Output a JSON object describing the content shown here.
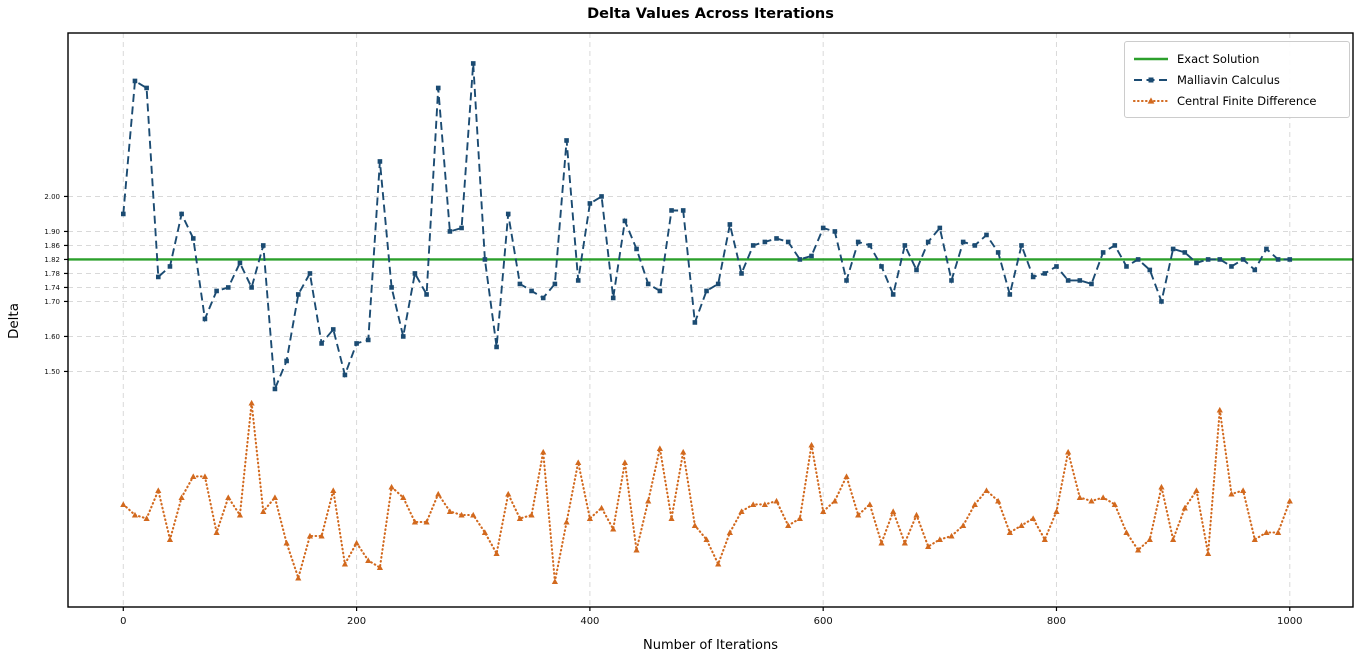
{
  "title": "Delta Values Across Iterations",
  "axes": {
    "x_label": "Number of Iterations",
    "y_label": "Delta"
  },
  "legend": {
    "position": "upper right",
    "entries": [
      "Exact Solution",
      "Malliavin Calculus",
      "Central Finite Difference"
    ]
  },
  "colors": {
    "exact": "#2ca02c",
    "malliavin": "#1b4b72",
    "cfd": "#d2691e",
    "grid": "#d9d9d9",
    "spine": "#000000",
    "background": "#ffffff"
  },
  "chart_data": {
    "type": "line",
    "title": "Delta Values Across Iterations",
    "xlabel": "Number of Iterations",
    "ylabel": "Delta",
    "grid": true,
    "legend_position": "upper right",
    "xlim": [
      -47.4,
      1054.2
    ],
    "ylim": [
      0.827,
      2.467
    ],
    "xtick_labels": [
      "0",
      "200",
      "400",
      "600",
      "800",
      "1000"
    ],
    "ytick_labels": [
      "1.50",
      "1.60",
      "1.70",
      "1.74",
      "1.78",
      "1.82",
      "1.86",
      "1.90",
      "2.00"
    ],
    "x": [
      0,
      10,
      20,
      30,
      40,
      50,
      60,
      70,
      80,
      90,
      100,
      110,
      120,
      130,
      140,
      150,
      160,
      170,
      180,
      190,
      200,
      210,
      220,
      230,
      240,
      250,
      260,
      270,
      280,
      290,
      300,
      310,
      320,
      330,
      340,
      350,
      360,
      370,
      380,
      390,
      400,
      410,
      420,
      430,
      440,
      450,
      460,
      470,
      480,
      490,
      500,
      510,
      520,
      530,
      540,
      550,
      560,
      570,
      580,
      590,
      600,
      610,
      620,
      630,
      640,
      650,
      660,
      670,
      680,
      690,
      700,
      710,
      720,
      730,
      740,
      750,
      760,
      770,
      780,
      790,
      800,
      810,
      820,
      830,
      840,
      850,
      860,
      870,
      880,
      890,
      900,
      910,
      920,
      930,
      940,
      950,
      960,
      970,
      980,
      990,
      1000
    ],
    "series": [
      {
        "name": "Exact Solution",
        "style": "solid",
        "marker": "none",
        "color": "#2ca02c",
        "constant": 1.82
      },
      {
        "name": "Malliavin Calculus",
        "style": "dashed",
        "marker": "square",
        "color": "#1b4b72",
        "values": [
          1.95,
          2.33,
          2.31,
          1.77,
          1.8,
          1.95,
          1.88,
          1.65,
          1.73,
          1.74,
          1.81,
          1.74,
          1.86,
          1.45,
          1.53,
          1.72,
          1.78,
          1.58,
          1.62,
          1.49,
          1.58,
          1.59,
          2.1,
          1.74,
          1.6,
          1.78,
          1.72,
          2.31,
          1.9,
          1.91,
          2.38,
          1.82,
          1.57,
          1.95,
          1.75,
          1.73,
          1.71,
          1.75,
          2.16,
          1.76,
          1.98,
          2.0,
          1.71,
          1.93,
          1.85,
          1.75,
          1.73,
          1.96,
          1.96,
          1.64,
          1.73,
          1.75,
          1.92,
          1.78,
          1.86,
          1.87,
          1.88,
          1.87,
          1.82,
          1.83,
          1.91,
          1.9,
          1.76,
          1.87,
          1.86,
          1.8,
          1.72,
          1.86,
          1.79,
          1.87,
          1.91,
          1.76,
          1.87,
          1.86,
          1.89,
          1.84,
          1.72,
          1.86,
          1.77,
          1.78,
          1.8,
          1.76,
          1.76,
          1.75,
          1.84,
          1.86,
          1.8,
          1.82,
          1.79,
          1.7,
          1.85,
          1.84,
          1.81,
          1.82,
          1.82,
          1.8,
          1.82,
          1.79,
          1.85,
          1.82,
          1.82
        ]
      },
      {
        "name": "Central Finite Difference",
        "style": "dotted",
        "marker": "triangle",
        "color": "#d2691e",
        "values": [
          1.12,
          1.09,
          1.08,
          1.16,
          1.02,
          1.14,
          1.2,
          1.2,
          1.04,
          1.14,
          1.09,
          1.41,
          1.1,
          1.14,
          1.01,
          0.91,
          1.03,
          1.03,
          1.16,
          0.95,
          1.01,
          0.96,
          0.94,
          1.17,
          1.14,
          1.07,
          1.07,
          1.15,
          1.1,
          1.09,
          1.09,
          1.04,
          0.98,
          1.15,
          1.08,
          1.09,
          1.27,
          0.9,
          1.07,
          1.24,
          1.08,
          1.11,
          1.05,
          1.24,
          0.99,
          1.13,
          1.28,
          1.08,
          1.27,
          1.06,
          1.02,
          0.95,
          1.04,
          1.1,
          1.12,
          1.12,
          1.13,
          1.06,
          1.08,
          1.29,
          1.1,
          1.13,
          1.2,
          1.09,
          1.12,
          1.01,
          1.1,
          1.01,
          1.09,
          1.0,
          1.02,
          1.03,
          1.06,
          1.12,
          1.16,
          1.13,
          1.04,
          1.06,
          1.08,
          1.02,
          1.1,
          1.27,
          1.14,
          1.13,
          1.14,
          1.12,
          1.04,
          0.99,
          1.02,
          1.17,
          1.02,
          1.11,
          1.16,
          0.98,
          1.39,
          1.15,
          1.16,
          1.02,
          1.04,
          1.04,
          1.13
        ]
      }
    ]
  }
}
